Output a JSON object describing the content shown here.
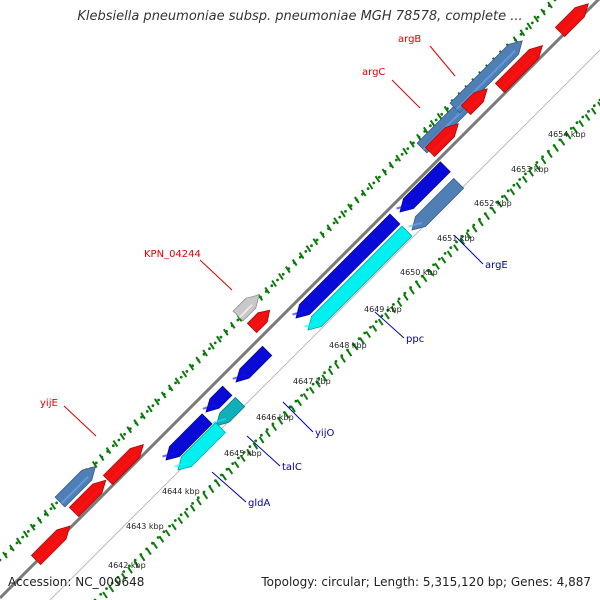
{
  "title": "Klebsiella pneumoniae subsp. pneumoniae MGH 78578, complete ...",
  "footer": {
    "accession": "Accession: NC_009648",
    "summary": "Topology: circular; Length: 5,315,120 bp; Genes: 4,887"
  },
  "ticks": [
    "4642 kbp",
    "4643 kbp",
    "4644 kbp",
    "4645 kbp",
    "4646 kbp",
    "4647 kbp",
    "4648 kbp",
    "4649 kbp",
    "4650 kbp",
    "4651 kbp",
    "4652 kbp",
    "4653 kbp",
    "4654 kbp"
  ],
  "gene_labels": [
    {
      "text": "argB",
      "color": "#dd0000"
    },
    {
      "text": "argC",
      "color": "#dd0000"
    },
    {
      "text": "KPN_04244",
      "color": "#dd0000"
    },
    {
      "text": "yijE",
      "color": "#dd0000"
    },
    {
      "text": "argE",
      "color": "#0000aa"
    },
    {
      "text": "ppc",
      "color": "#0000aa"
    },
    {
      "text": "yijO",
      "color": "#0000aa"
    },
    {
      "text": "talC",
      "color": "#0000aa"
    },
    {
      "text": "gldA",
      "color": "#0000aa"
    }
  ],
  "colors": {
    "forward_gene": "#f01010",
    "reverse_gene": "#0a0ad8",
    "steel_gene": "#4f7fb5",
    "cyan_gene": "#00f0f0",
    "teal_gene": "#10b0b8",
    "grey_gene": "#c8c8c8",
    "backbone": "#7a7a7a",
    "gc_dots": "#0a7a0a"
  }
}
